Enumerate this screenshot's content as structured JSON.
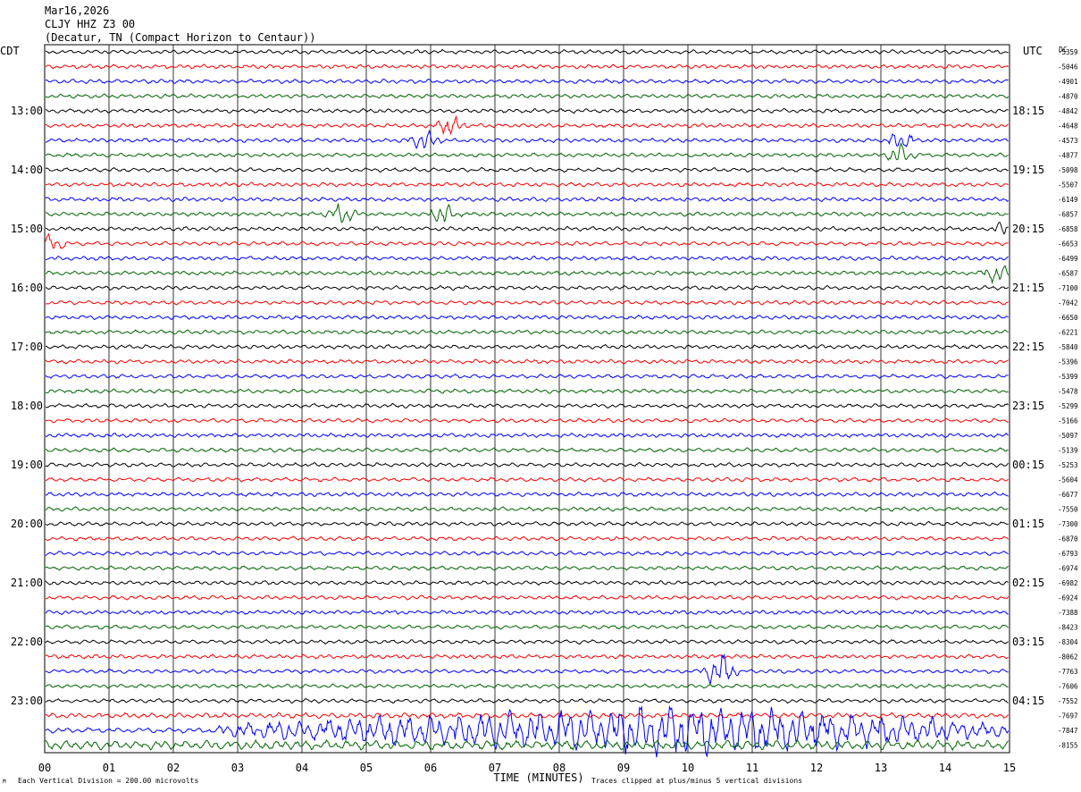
{
  "header": {
    "date": "Mar16,2026",
    "station": "CLJY HHZ Z3 00",
    "location": "(Decatur, TN (Compact Horizon to Centaur))"
  },
  "chart_data": {
    "type": "line",
    "title": "",
    "xlabel": "TIME (MINUTES)",
    "x_ticks": [
      "00",
      "01",
      "02",
      "03",
      "04",
      "05",
      "06",
      "07",
      "08",
      "09",
      "10",
      "11",
      "12",
      "13",
      "14",
      "15"
    ],
    "xlim": [
      0,
      15
    ],
    "left_axis_title": "CDT",
    "right_axis_title": "UTC",
    "dc_label": "DC",
    "left_hour_labels": [
      "13:00",
      "14:00",
      "15:00",
      "16:00",
      "17:00",
      "18:00",
      "19:00",
      "20:00",
      "21:00",
      "22:00",
      "23:00"
    ],
    "right_hour_labels": [
      "18:15",
      "19:15",
      "20:15",
      "21:15",
      "22:15",
      "23:15",
      "00:15",
      "01:15",
      "02:15",
      "03:15",
      "04:15"
    ],
    "trace_colors": [
      "#000000",
      "#ff0000",
      "#0000ff",
      "#006400"
    ],
    "dc_offsets": [
      -5359,
      -5046,
      -4901,
      -4870,
      -4842,
      -4648,
      -4573,
      -4877,
      -5098,
      -5507,
      -6149,
      -6857,
      -6858,
      -6653,
      -6499,
      -6587,
      -7100,
      -7042,
      -6650,
      -6221,
      -5840,
      -5396,
      -5399,
      -5478,
      -5299,
      -5166,
      -5097,
      -5139,
      -5253,
      -5604,
      -6677,
      -7550,
      -7300,
      -6870,
      -6793,
      -6974,
      -6982,
      -6924,
      -7388,
      -8423,
      -8304,
      -8062,
      -7763,
      -7606,
      -7552,
      -7697,
      -7847,
      -8155
    ],
    "events_minutes": [
      {
        "trace": 5,
        "minute": 6.3
      },
      {
        "trace": 6,
        "minute": 5.9
      },
      {
        "trace": 6,
        "minute": 13.3
      },
      {
        "trace": 7,
        "minute": 13.3
      },
      {
        "trace": 11,
        "minute": 4.6
      },
      {
        "trace": 11,
        "minute": 6.2
      },
      {
        "trace": 12,
        "minute": 15.0
      },
      {
        "trace": 13,
        "minute": 0.1
      },
      {
        "trace": 15,
        "minute": 14.8
      },
      {
        "trace": 42,
        "minute": 10.5
      },
      {
        "trace": 46,
        "minute": 10.5
      }
    ]
  },
  "footer": {
    "scale_note": "Each Vertical Division =  200.00 microvolts",
    "clip_note": "Traces clipped at plus/minus 5 vertical divisions"
  }
}
